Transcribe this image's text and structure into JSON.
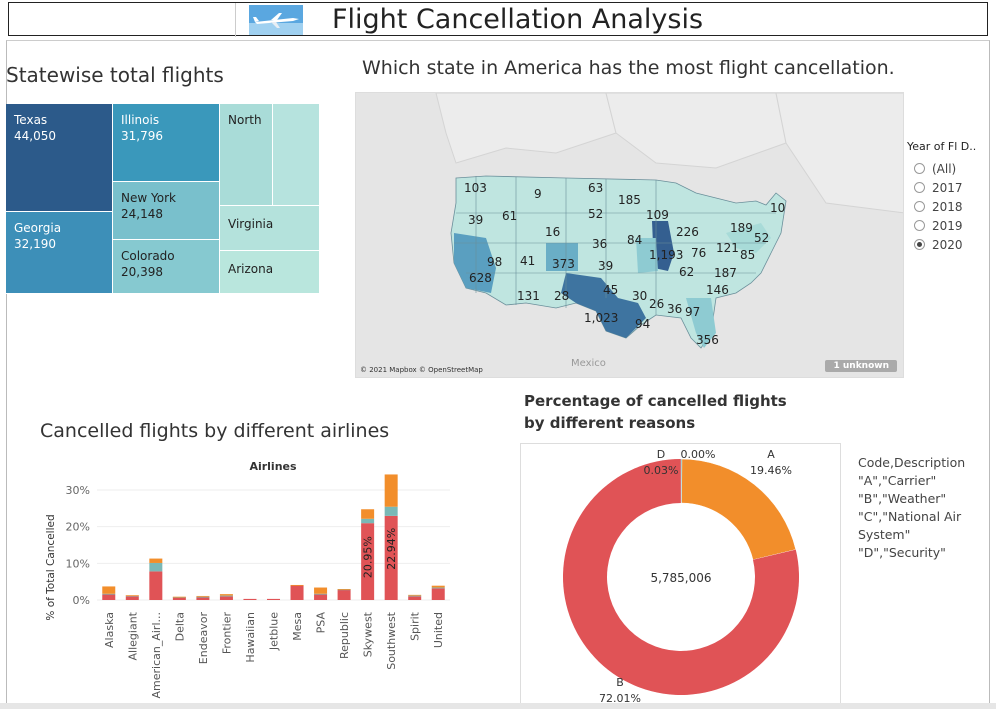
{
  "header": {
    "title": "Flight Cancellation Analysis"
  },
  "treemap": {
    "title": "Statewise total flights",
    "tiles": [
      {
        "name": "Texas",
        "value": "44,050",
        "color": "#2c5a8a",
        "text": "#ffffff"
      },
      {
        "name": "Georgia",
        "value": "32,190",
        "color": "#3d8fb8",
        "text": "#ffffff"
      },
      {
        "name": "Illinois",
        "value": "31,796",
        "color": "#3a98bb",
        "text": "#ffffff"
      },
      {
        "name": "New York",
        "value": "24,148",
        "color": "#79c0cc",
        "text": "#222222"
      },
      {
        "name": "Colorado",
        "value": "20,398",
        "color": "#86c9d0",
        "text": "#222222"
      },
      {
        "name": "North",
        "value": "",
        "color": "#a9dcd8",
        "text": "#222222"
      },
      {
        "name": "",
        "value": "",
        "color": "#b6e3de",
        "text": "#222222"
      },
      {
        "name": "Virginia",
        "value": "",
        "color": "#b4e2dc",
        "text": "#222222"
      },
      {
        "name": "Arizona",
        "value": "",
        "color": "#b9e6dd",
        "text": "#222222"
      }
    ]
  },
  "map": {
    "title": "Which state in America has the most flight cancellation.",
    "labels": [
      "103",
      "9",
      "63",
      "185",
      "10",
      "39",
      "61",
      "52",
      "109",
      "189",
      "52",
      "16",
      "36",
      "84",
      "226",
      "121",
      "85",
      "98",
      "41",
      "373",
      "39",
      "1,193",
      "76",
      "187",
      "62",
      "628",
      "131",
      "28",
      "45",
      "30",
      "146",
      "26",
      "36",
      "97",
      "1,023",
      "94",
      "356"
    ],
    "credit": "© 2021 Mapbox © OpenStreetMap",
    "place": "Mexico",
    "unknown": "1 unknown"
  },
  "filter": {
    "title": "Year of Fl D..",
    "options": [
      "(All)",
      "2017",
      "2018",
      "2019",
      "2020"
    ],
    "selected": "2020"
  },
  "bar": {
    "title": "Cancelled flights by different airlines",
    "header": "Airlines",
    "ylabel": "% of Total Cancelled"
  },
  "donut": {
    "title": "Percentage of cancelled flights by different reasons",
    "center": "5,785,006",
    "labels": [
      {
        "code": "A",
        "pct": "19.46%"
      },
      {
        "code": "B",
        "pct": "72.01%"
      },
      {
        "code": "C",
        "pct": "0.00%"
      },
      {
        "code": "D",
        "pct": "0.03%"
      }
    ]
  },
  "legend_text": {
    "lines": [
      "Code,Description",
      "\"A\",\"Carrier\"",
      "\"B\",\"Weather\"",
      "\"C\",\"National Air",
      "System\"",
      "\"D\",\"Security\""
    ]
  },
  "chart_data": [
    {
      "type": "bar",
      "stacked": true,
      "title": "Airlines",
      "xlabel": "",
      "ylabel": "% of Total Cancelled",
      "categories": [
        "Alaska",
        "Allegiant",
        "American_Airl...",
        "Delta",
        "Endeavor",
        "Frontier",
        "Hawaiian",
        "Jetblue",
        "Mesa",
        "PSA",
        "Republic",
        "Skywest",
        "Southwest",
        "Spirit",
        "United"
      ],
      "series": [
        {
          "name": "",
          "color": "#e05356",
          "values": [
            1.5,
            1.0,
            7.8,
            0.7,
            0.8,
            1.0,
            0.3,
            0.3,
            4.0,
            1.5,
            2.8,
            20.95,
            22.94,
            1.0,
            3.2
          ]
        },
        {
          "name": "",
          "color": "#7ab8b6",
          "values": [
            0.2,
            0.2,
            2.3,
            0.1,
            0.1,
            0.2,
            0.0,
            0.0,
            0.0,
            0.2,
            0.1,
            1.2,
            2.5,
            0.2,
            0.2
          ]
        },
        {
          "name": "",
          "color": "#f28e2b",
          "values": [
            2.0,
            0.1,
            1.2,
            0.1,
            0.2,
            0.4,
            0.0,
            0.0,
            0.1,
            1.7,
            0.1,
            2.6,
            8.8,
            0.2,
            0.5
          ]
        }
      ],
      "data_labels": {
        "Skywest": "20.95%",
        "Southwest": "22.94%"
      },
      "yticks": [
        "0%",
        "10%",
        "20%",
        "30%"
      ],
      "ylim": [
        0,
        33
      ]
    },
    {
      "type": "pie",
      "donut": true,
      "center_label": "5,785,006",
      "slices": [
        {
          "label": "A",
          "value": 19.46,
          "color": "#f28e2b"
        },
        {
          "label": "B",
          "value": 72.01,
          "color": "#e05356"
        },
        {
          "label": "C",
          "value": 0.0,
          "color": "#b07aa1"
        },
        {
          "label": "D",
          "value": 0.03,
          "color": "#7ab8b6"
        }
      ]
    }
  ]
}
